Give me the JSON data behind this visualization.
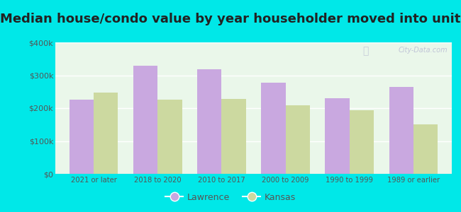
{
  "categories": [
    "2021 or later",
    "2018 to 2020",
    "2010 to 2017",
    "2000 to 2009",
    "1990 to 1999",
    "1989 or earlier"
  ],
  "lawrence_values": [
    225000,
    330000,
    318000,
    278000,
    230000,
    265000
  ],
  "kansas_values": [
    248000,
    225000,
    228000,
    208000,
    193000,
    150000
  ],
  "lawrence_color": "#c9a8e0",
  "kansas_color": "#ccd9a0",
  "title": "Median house/condo value by year householder moved into unit",
  "legend_lawrence": "Lawrence",
  "legend_kansas": "Kansas",
  "ylim": [
    0,
    400000
  ],
  "yticks": [
    0,
    100000,
    200000,
    300000,
    400000
  ],
  "ytick_labels": [
    "$0",
    "$100k",
    "$200k",
    "$300k",
    "$400k"
  ],
  "plot_bg_color": "#eaf7ea",
  "outer_background": "#00e8e8",
  "watermark": "City-Data.com",
  "bar_width": 0.38,
  "title_fontsize": 13
}
